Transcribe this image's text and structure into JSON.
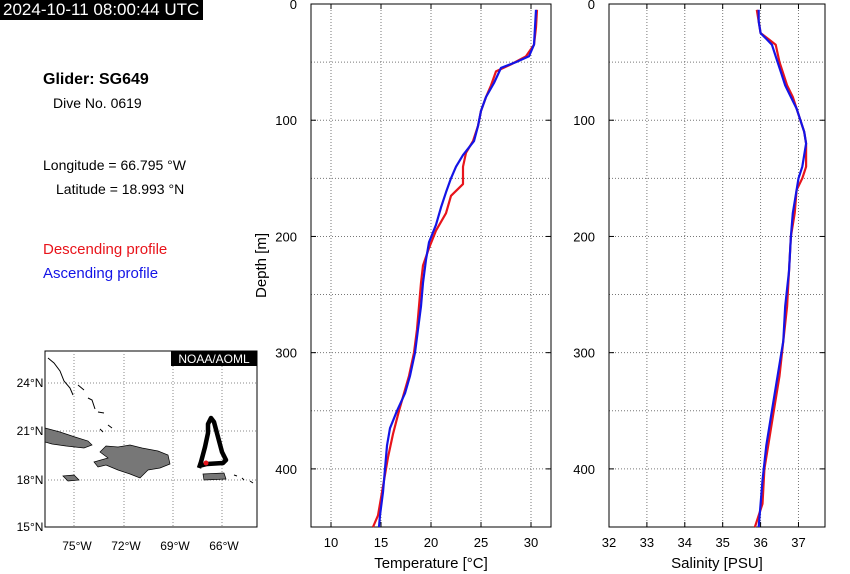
{
  "timestamp": "2024-10-11 08:00:44 UTC",
  "glider": "Glider: SG649",
  "dive": "Dive No. 0619",
  "longitude": "Longitude = 66.795 °W",
  "latitude": "Latitude = 18.993 °N",
  "legend": {
    "descending": "Descending profile",
    "ascending": "Ascending profile",
    "descending_color": "#e8141b",
    "ascending_color": "#1414e6"
  },
  "map": {
    "credit": "NOAA/AOML",
    "lat_ticks": [
      "24°N",
      "21°N",
      "18°N",
      "15°N"
    ],
    "lon_ticks": [
      "75°W",
      "72°W",
      "69°W",
      "66°W"
    ],
    "land_color": "#777777",
    "track_color": "#000000",
    "current_position_color": "#e8141b"
  },
  "chart_data": [
    {
      "type": "line",
      "xlabel": "Temperature [°C]",
      "ylabel": "Depth [m]",
      "xlim": [
        8,
        32
      ],
      "ylim": [
        450,
        0
      ],
      "x_ticks": [
        "10",
        "15",
        "20",
        "25",
        "30"
      ],
      "y_ticks": [
        "0",
        "100",
        "200",
        "300",
        "400"
      ],
      "grid": true,
      "series": [
        {
          "name": "Descending profile",
          "color": "#e8141b",
          "points": [
            [
              30.6,
              5
            ],
            [
              30.5,
              20
            ],
            [
              30.3,
              35
            ],
            [
              29.5,
              45
            ],
            [
              28.0,
              52
            ],
            [
              26.5,
              58
            ],
            [
              26.0,
              70
            ],
            [
              25.5,
              80
            ],
            [
              25.0,
              92
            ],
            [
              24.7,
              105
            ],
            [
              24.2,
              118
            ],
            [
              23.5,
              128
            ],
            [
              23.2,
              140
            ],
            [
              23.2,
              155
            ],
            [
              22.0,
              165
            ],
            [
              21.5,
              180
            ],
            [
              20.5,
              195
            ],
            [
              19.8,
              210
            ],
            [
              19.2,
              225
            ],
            [
              19.0,
              240
            ],
            [
              18.8,
              260
            ],
            [
              18.6,
              280
            ],
            [
              18.3,
              300
            ],
            [
              17.8,
              320
            ],
            [
              17.3,
              335
            ],
            [
              16.8,
              350
            ],
            [
              16.2,
              370
            ],
            [
              15.7,
              390
            ],
            [
              15.3,
              410
            ],
            [
              15.0,
              425
            ],
            [
              14.7,
              440
            ],
            [
              14.2,
              450
            ]
          ]
        },
        {
          "name": "Ascending profile",
          "color": "#1414e6",
          "points": [
            [
              30.5,
              5
            ],
            [
              30.4,
              20
            ],
            [
              30.3,
              35
            ],
            [
              29.8,
              45
            ],
            [
              28.5,
              50
            ],
            [
              27.0,
              55
            ],
            [
              26.3,
              68
            ],
            [
              25.5,
              80
            ],
            [
              25.0,
              92
            ],
            [
              24.7,
              105
            ],
            [
              24.3,
              118
            ],
            [
              23.2,
              130
            ],
            [
              22.5,
              140
            ],
            [
              22.0,
              150
            ],
            [
              21.5,
              162
            ],
            [
              21.0,
              175
            ],
            [
              20.5,
              190
            ],
            [
              19.8,
              205
            ],
            [
              19.5,
              220
            ],
            [
              19.2,
              240
            ],
            [
              19.0,
              260
            ],
            [
              18.7,
              280
            ],
            [
              18.4,
              300
            ],
            [
              17.9,
              320
            ],
            [
              17.4,
              335
            ],
            [
              16.6,
              350
            ],
            [
              15.9,
              365
            ],
            [
              15.6,
              380
            ],
            [
              15.4,
              400
            ],
            [
              15.2,
              420
            ],
            [
              14.9,
              440
            ],
            [
              14.8,
              450
            ]
          ]
        }
      ]
    },
    {
      "type": "line",
      "xlabel": "Salinity [PSU]",
      "ylabel": "",
      "xlim": [
        32,
        37.7
      ],
      "ylim": [
        450,
        0
      ],
      "x_ticks": [
        "32",
        "33",
        "34",
        "35",
        "36",
        "37"
      ],
      "y_ticks": [
        "0",
        "100",
        "200",
        "300",
        "400"
      ],
      "grid": true,
      "series": [
        {
          "name": "Descending profile",
          "color": "#e8141b",
          "points": [
            [
              35.9,
              5
            ],
            [
              35.95,
              15
            ],
            [
              36.0,
              25
            ],
            [
              36.2,
              30
            ],
            [
              36.4,
              35
            ],
            [
              36.5,
              50
            ],
            [
              36.6,
              60
            ],
            [
              36.7,
              70
            ],
            [
              36.85,
              80
            ],
            [
              36.95,
              90
            ],
            [
              37.05,
              100
            ],
            [
              37.15,
              110
            ],
            [
              37.2,
              120
            ],
            [
              37.2,
              130
            ],
            [
              37.2,
              140
            ],
            [
              37.1,
              150
            ],
            [
              36.95,
              160
            ],
            [
              36.9,
              180
            ],
            [
              36.8,
              200
            ],
            [
              36.75,
              230
            ],
            [
              36.7,
              260
            ],
            [
              36.6,
              290
            ],
            [
              36.5,
              320
            ],
            [
              36.35,
              350
            ],
            [
              36.2,
              380
            ],
            [
              36.1,
              400
            ],
            [
              36.05,
              430
            ],
            [
              35.85,
              450
            ]
          ]
        },
        {
          "name": "Ascending profile",
          "color": "#1414e6",
          "points": [
            [
              35.95,
              5
            ],
            [
              35.95,
              15
            ],
            [
              36.0,
              25
            ],
            [
              36.15,
              30
            ],
            [
              36.3,
              35
            ],
            [
              36.45,
              50
            ],
            [
              36.55,
              60
            ],
            [
              36.65,
              70
            ],
            [
              36.8,
              80
            ],
            [
              36.95,
              90
            ],
            [
              37.05,
              100
            ],
            [
              37.15,
              110
            ],
            [
              37.2,
              120
            ],
            [
              37.15,
              130
            ],
            [
              37.1,
              140
            ],
            [
              37.0,
              150
            ],
            [
              36.95,
              160
            ],
            [
              36.85,
              180
            ],
            [
              36.8,
              200
            ],
            [
              36.75,
              230
            ],
            [
              36.65,
              260
            ],
            [
              36.6,
              290
            ],
            [
              36.45,
              320
            ],
            [
              36.3,
              350
            ],
            [
              36.15,
              380
            ],
            [
              36.05,
              410
            ],
            [
              36.0,
              430
            ],
            [
              35.95,
              450
            ]
          ]
        }
      ]
    }
  ]
}
